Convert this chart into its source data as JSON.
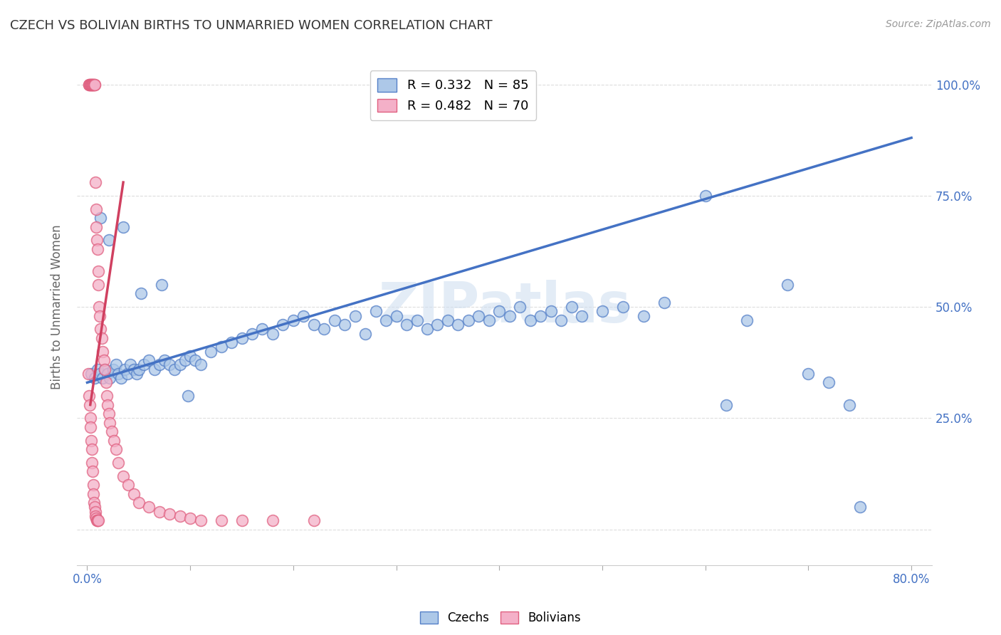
{
  "title": "CZECH VS BOLIVIAN BIRTHS TO UNMARRIED WOMEN CORRELATION CHART",
  "source": "Source: ZipAtlas.com",
  "ylabel": "Births to Unmarried Women",
  "x_tick_vals": [
    0.0,
    10.0,
    20.0,
    30.0,
    40.0,
    50.0,
    60.0,
    70.0,
    80.0
  ],
  "x_tick_labels_sparse": [
    "0.0%",
    "",
    "",
    "",
    "",
    "",
    "",
    "",
    "80.0%"
  ],
  "y_tick_vals": [
    0.0,
    25.0,
    50.0,
    75.0,
    100.0
  ],
  "y_tick_labels_right": [
    "",
    "25.0%",
    "50.0%",
    "75.0%",
    "100.0%"
  ],
  "xlim": [
    -1,
    82
  ],
  "ylim": [
    -8,
    108
  ],
  "czech_color": "#adc8e8",
  "bolivian_color": "#f4b0c8",
  "czech_edge_color": "#5580c8",
  "bolivian_edge_color": "#e06080",
  "czech_line_color": "#4472c4",
  "bolivian_line_color": "#d04060",
  "czech_R": 0.332,
  "czech_N": 85,
  "bolivian_R": 0.482,
  "bolivian_N": 70,
  "legend_label_czech": "Czechs",
  "legend_label_bolivian": "Bolivians",
  "watermark": "ZIPatlas",
  "background_color": "#ffffff",
  "tick_label_color": "#4472c4",
  "grid_color": "#dddddd",
  "title_color": "#333333",
  "czech_line": {
    "x0": 0,
    "x1": 80,
    "y0": 33.0,
    "y1": 88.0
  },
  "bolivian_line": {
    "x0": 0.3,
    "x1": 3.5,
    "y0": 28.0,
    "y1": 78.0
  },
  "czech_x": [
    0.4,
    0.7,
    1.0,
    1.2,
    1.5,
    1.7,
    2.0,
    2.2,
    2.5,
    2.8,
    3.0,
    3.3,
    3.6,
    3.9,
    4.2,
    4.5,
    4.8,
    5.0,
    5.5,
    6.0,
    6.5,
    7.0,
    7.5,
    8.0,
    8.5,
    9.0,
    9.5,
    10.0,
    10.5,
    11.0,
    12.0,
    13.0,
    14.0,
    15.0,
    16.0,
    17.0,
    18.0,
    19.0,
    20.0,
    21.0,
    22.0,
    23.0,
    24.0,
    25.0,
    26.0,
    27.0,
    28.0,
    29.0,
    30.0,
    31.0,
    32.0,
    33.0,
    34.0,
    35.0,
    36.0,
    37.0,
    38.0,
    39.0,
    40.0,
    41.0,
    42.0,
    43.0,
    44.0,
    45.0,
    46.0,
    47.0,
    48.0,
    50.0,
    52.0,
    54.0,
    56.0,
    60.0,
    62.0,
    64.0,
    68.0,
    70.0,
    72.0,
    74.0,
    1.3,
    2.1,
    3.5,
    5.2,
    7.2,
    9.8,
    75.0
  ],
  "czech_y": [
    35.0,
    34.0,
    36.0,
    35.0,
    34.0,
    36.0,
    35.0,
    34.0,
    36.0,
    37.0,
    35.0,
    34.0,
    36.0,
    35.0,
    37.0,
    36.0,
    35.0,
    36.0,
    37.0,
    38.0,
    36.0,
    37.0,
    38.0,
    37.0,
    36.0,
    37.0,
    38.0,
    39.0,
    38.0,
    37.0,
    40.0,
    41.0,
    42.0,
    43.0,
    44.0,
    45.0,
    44.0,
    46.0,
    47.0,
    48.0,
    46.0,
    45.0,
    47.0,
    46.0,
    48.0,
    44.0,
    49.0,
    47.0,
    48.0,
    46.0,
    47.0,
    45.0,
    46.0,
    47.0,
    46.0,
    47.0,
    48.0,
    47.0,
    49.0,
    48.0,
    50.0,
    47.0,
    48.0,
    49.0,
    47.0,
    50.0,
    48.0,
    49.0,
    50.0,
    48.0,
    51.0,
    75.0,
    28.0,
    47.0,
    55.0,
    35.0,
    33.0,
    28.0,
    70.0,
    65.0,
    68.0,
    53.0,
    55.0,
    30.0,
    5.0
  ],
  "bolivian_x": [
    0.15,
    0.2,
    0.25,
    0.3,
    0.35,
    0.4,
    0.45,
    0.5,
    0.55,
    0.6,
    0.65,
    0.7,
    0.75,
    0.8,
    0.85,
    0.9,
    0.95,
    1.0,
    1.05,
    1.1,
    1.15,
    1.2,
    1.3,
    1.4,
    1.5,
    1.6,
    1.7,
    1.8,
    1.9,
    2.0,
    2.1,
    2.2,
    2.4,
    2.6,
    2.8,
    3.0,
    3.5,
    4.0,
    4.5,
    5.0,
    6.0,
    7.0,
    8.0,
    9.0,
    10.0,
    11.0,
    13.0,
    15.0,
    18.0,
    22.0,
    0.1,
    0.18,
    0.22,
    0.28,
    0.32,
    0.38,
    0.42,
    0.48,
    0.52,
    0.58,
    0.62,
    0.68,
    0.72,
    0.78,
    0.82,
    0.88,
    0.92,
    0.98,
    1.02,
    1.08
  ],
  "bolivian_y": [
    100.0,
    100.0,
    100.0,
    100.0,
    100.0,
    100.0,
    100.0,
    100.0,
    100.0,
    100.0,
    100.0,
    100.0,
    100.0,
    78.0,
    72.0,
    68.0,
    65.0,
    63.0,
    58.0,
    55.0,
    50.0,
    48.0,
    45.0,
    43.0,
    40.0,
    38.0,
    36.0,
    33.0,
    30.0,
    28.0,
    26.0,
    24.0,
    22.0,
    20.0,
    18.0,
    15.0,
    12.0,
    10.0,
    8.0,
    6.0,
    5.0,
    4.0,
    3.5,
    3.0,
    2.5,
    2.0,
    2.0,
    2.0,
    2.0,
    2.0,
    35.0,
    30.0,
    28.0,
    25.0,
    23.0,
    20.0,
    18.0,
    15.0,
    13.0,
    10.0,
    8.0,
    6.0,
    5.0,
    4.0,
    3.0,
    2.5,
    2.0,
    2.0,
    2.0,
    2.0
  ]
}
